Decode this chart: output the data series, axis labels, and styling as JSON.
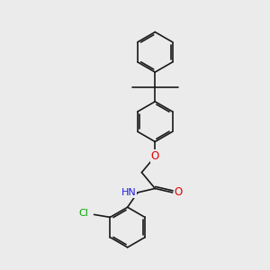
{
  "bg_color": "#ebebeb",
  "bond_color": "#1a1a1a",
  "line_width": 1.2,
  "atom_colors": {
    "O": "#e00000",
    "N": "#2020dd",
    "Cl": "#00aa00",
    "C": "#1a1a1a",
    "H": "#606060"
  },
  "font_size": 7.5,
  "fig_width": 3.0,
  "fig_height": 3.0,
  "dpi": 100
}
